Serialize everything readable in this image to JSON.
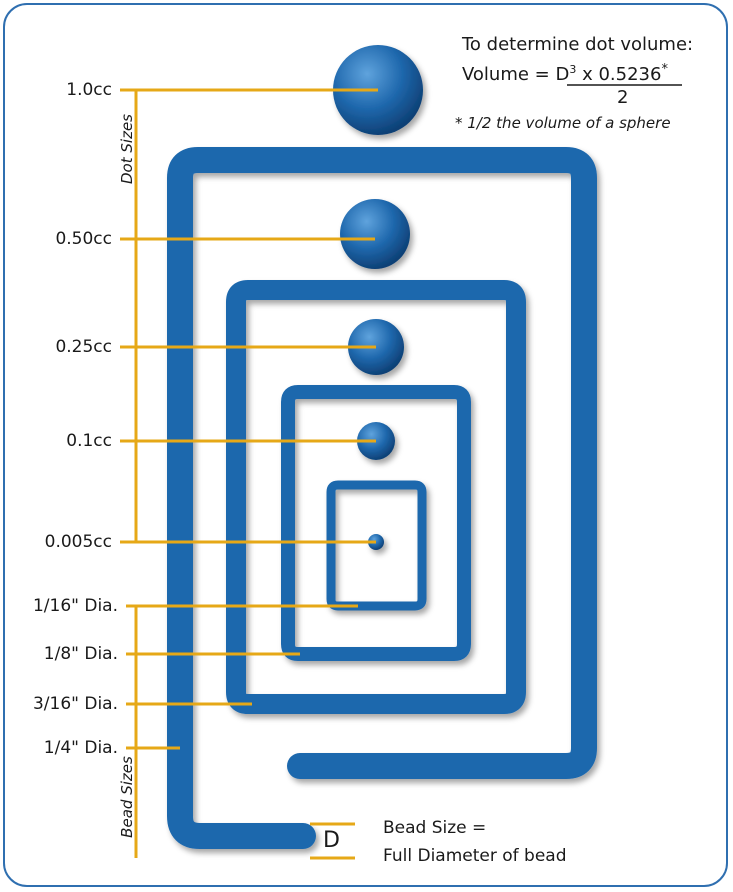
{
  "formula": {
    "heading": "To determine dot volume:",
    "lhs": "Volume = ",
    "base": "D",
    "exp": "3",
    "mult": " x 0.5236",
    "star": "*",
    "denominator": "2",
    "footnote": "* 1/2 the volume of a sphere"
  },
  "dot_sizes": {
    "title": "Dot Sizes",
    "items": [
      {
        "label": "1.0cc"
      },
      {
        "label": "0.50cc"
      },
      {
        "label": "0.25cc"
      },
      {
        "label": "0.1cc"
      },
      {
        "label": "0.005cc"
      }
    ]
  },
  "bead_sizes": {
    "title": "Bead Sizes",
    "items": [
      {
        "label": "1/16\" Dia."
      },
      {
        "label": "1/8\" Dia."
      },
      {
        "label": "3/16\" Dia."
      },
      {
        "label": "1/4\" Dia."
      }
    ]
  },
  "bead_legend": {
    "symbol": "D",
    "line1": "Bead Size =",
    "line2": "Full Diameter of bead"
  },
  "colors": {
    "bead_blue": "#1f68ad",
    "leader_gold": "#e6a817",
    "frame_blue": "#2f6fb0"
  }
}
